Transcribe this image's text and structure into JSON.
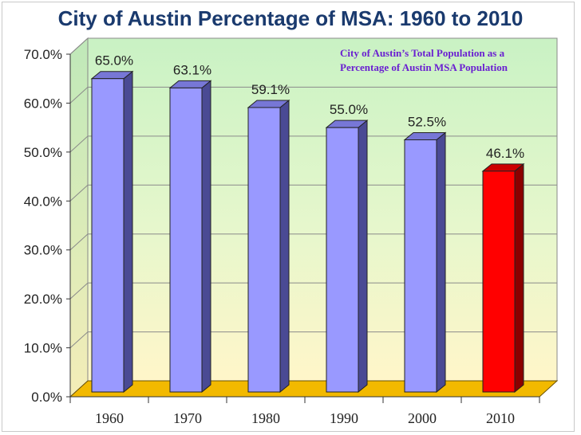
{
  "colors": {
    "bar_face": "#9999ff",
    "bar_side": "#4a4a94",
    "bar_top": "#7777d6",
    "highlight_face": "#ff0000",
    "highlight_side": "#8b0000",
    "highlight_top": "#cc0000",
    "floor": "#f2b900",
    "title": "#1a3a6e",
    "annotation": "#6a1fd1"
  },
  "chart_data": {
    "type": "bar",
    "title": "City of Austin Percentage of MSA: 1960 to 2010",
    "annotation": [
      "City of Austin’s Total  Population as a",
      "Percentage of Austin MSA Population"
    ],
    "categories": [
      "1960",
      "1970",
      "1980",
      "1990",
      "2000",
      "2010"
    ],
    "values": [
      65.0,
      63.1,
      59.1,
      55.0,
      52.5,
      46.1
    ],
    "data_labels": [
      "65.0%",
      "63.1%",
      "59.1%",
      "55.0%",
      "52.5%",
      "46.1%"
    ],
    "highlight_index": 5,
    "ylim": [
      0,
      70
    ],
    "yticks": [
      0,
      10,
      20,
      30,
      40,
      50,
      60,
      70
    ],
    "ytick_labels": [
      "0.0%",
      "10.0%",
      "20.0%",
      "30.0%",
      "40.0%",
      "50.0%",
      "60.0%",
      "70.0%"
    ],
    "xlabel": "",
    "ylabel": "",
    "grid": true,
    "legend": "none"
  }
}
